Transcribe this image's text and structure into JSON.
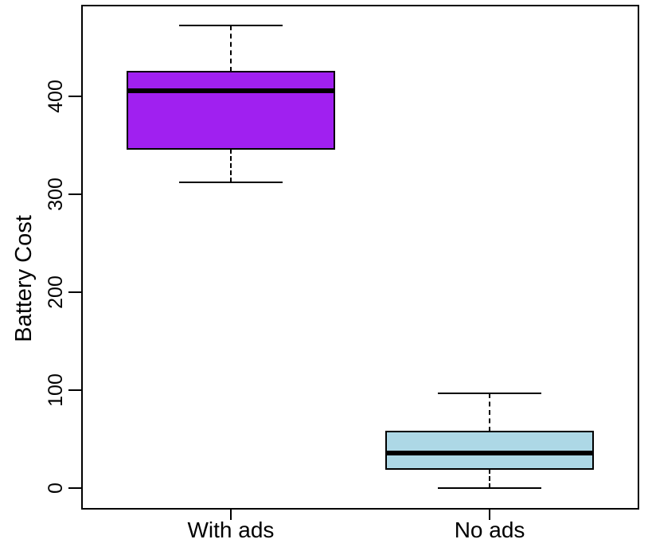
{
  "figure": {
    "background_color": "#ffffff",
    "axis_color": "#000000",
    "text_color": "#000000"
  },
  "chart_data": {
    "type": "boxplot",
    "title": "",
    "xlabel": "",
    "ylabel": "Battery Cost",
    "categories": [
      "With ads",
      "No ads"
    ],
    "series": [
      {
        "name": "With ads",
        "min": 312,
        "q1": 346,
        "median": 405,
        "q3": 425,
        "max": 472,
        "fill": "#A020F0"
      },
      {
        "name": "No ads",
        "min": 0,
        "q1": 20,
        "median": 36,
        "q3": 58,
        "max": 97,
        "fill": "#ADD8E6"
      }
    ],
    "yticks": [
      0,
      100,
      200,
      300,
      400
    ],
    "ylim": [
      -21,
      492.3
    ],
    "grid": false,
    "legend_position": "none",
    "whisker_style": "dashed",
    "median_color": "#000000",
    "box_border_color": "#000000"
  }
}
